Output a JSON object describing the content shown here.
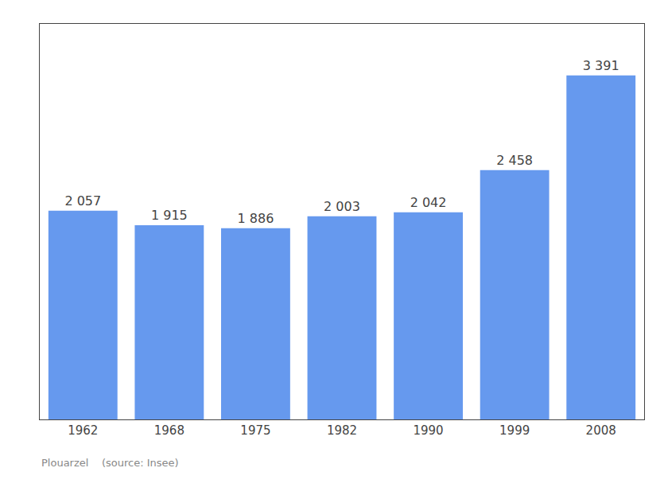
{
  "chart_data": {
    "type": "bar",
    "categories": [
      "1962",
      "1968",
      "1975",
      "1982",
      "1990",
      "1999",
      "2008"
    ],
    "values": [
      2057,
      1915,
      1886,
      2003,
      2042,
      2458,
      3391
    ],
    "value_labels": [
      "2 057",
      "1 915",
      "1 886",
      "2 003",
      "2 042",
      "2 458",
      "3 391"
    ],
    "data_labels": true,
    "color": "#6699ee",
    "ylim": [
      0,
      3900
    ],
    "tick_labels": "x",
    "grid": false,
    "annotations": [
      "Plouarzel    (source: Insee)"
    ]
  }
}
